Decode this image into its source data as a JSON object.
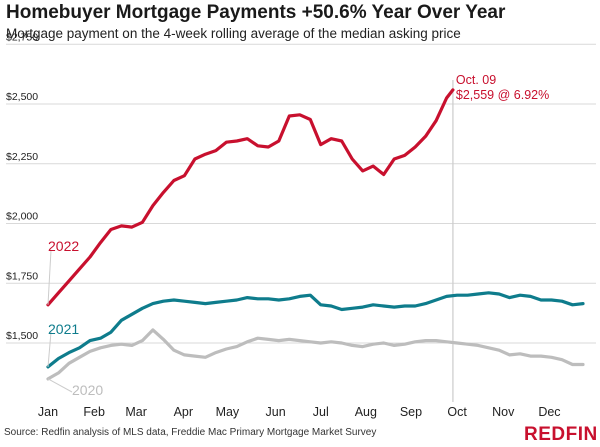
{
  "title": "Homebuyer Mortgage Payments +50.6% Year Over Year",
  "subtitle": "Mortgage payment on the 4-week rolling average of the median asking price",
  "source": "Source: Redfin analysis of MLS data, Freddie Mac Primary Mortgage Market Survey",
  "logo_text": "REDFIN",
  "colors": {
    "2022": "#c8102e",
    "2021": "#0e7c8c",
    "2020": "#bdbdbd",
    "grid": "#d9d9d9",
    "marker": "#cccccc"
  },
  "chart_data": {
    "type": "line",
    "title": "Homebuyer Mortgage Payments +50.6% Year Over Year",
    "subtitle": "Mortgage payment on the 4-week rolling average of the median asking price",
    "xlabel": "",
    "ylabel": "",
    "ylim": [
      1350,
      2750
    ],
    "xlim": [
      0,
      51
    ],
    "y_ticks": [
      {
        "value": 1500,
        "label": "$1,500"
      },
      {
        "value": 1750,
        "label": "$1,750"
      },
      {
        "value": 2000,
        "label": "$2,000"
      },
      {
        "value": 2250,
        "label": "$2,250"
      },
      {
        "value": 2500,
        "label": "$2,500"
      },
      {
        "value": 2750,
        "label": "$2,750"
      }
    ],
    "x_ticks": [
      {
        "week": 0,
        "label": "Jan"
      },
      {
        "week": 4.4,
        "label": "Feb"
      },
      {
        "week": 8.4,
        "label": "Mar"
      },
      {
        "week": 12.9,
        "label": "Apr"
      },
      {
        "week": 17.1,
        "label": "May"
      },
      {
        "week": 21.7,
        "label": "Jun"
      },
      {
        "week": 26.0,
        "label": "Jul"
      },
      {
        "week": 30.3,
        "label": "Aug"
      },
      {
        "week": 34.6,
        "label": "Sep"
      },
      {
        "week": 39.0,
        "label": "Oct"
      },
      {
        "week": 43.4,
        "label": "Nov"
      },
      {
        "week": 47.8,
        "label": "Dec"
      }
    ],
    "grid": true,
    "marker_week": 38.6,
    "annotation": {
      "line1": "Oct. 09",
      "line2": "$2,559 @ 6.92%"
    },
    "series": [
      {
        "name": "2022",
        "x": [
          0,
          1,
          2,
          3,
          4,
          5,
          6,
          7,
          8,
          9,
          10,
          11,
          12,
          13,
          14,
          15,
          16,
          17,
          18,
          19,
          20,
          21,
          22,
          23,
          24,
          25,
          26,
          27,
          28,
          29,
          30,
          31,
          32,
          33,
          34,
          35,
          36,
          37,
          38,
          38.6
        ],
        "values": [
          1660,
          1710,
          1760,
          1810,
          1860,
          1920,
          1975,
          1990,
          1985,
          2005,
          2075,
          2130,
          2180,
          2200,
          2270,
          2290,
          2305,
          2340,
          2345,
          2355,
          2325,
          2320,
          2345,
          2450,
          2455,
          2435,
          2330,
          2355,
          2345,
          2270,
          2220,
          2240,
          2205,
          2270,
          2285,
          2320,
          2365,
          2430,
          2525,
          2559
        ]
      },
      {
        "name": "2021",
        "x": [
          0,
          1,
          2,
          3,
          4,
          5,
          6,
          7,
          8,
          9,
          10,
          11,
          12,
          13,
          14,
          15,
          16,
          17,
          18,
          19,
          20,
          21,
          22,
          23,
          24,
          25,
          26,
          27,
          28,
          29,
          30,
          31,
          32,
          33,
          34,
          35,
          36,
          37,
          38,
          39,
          40,
          41,
          42,
          43,
          44,
          45,
          46,
          47,
          48,
          49,
          50,
          51
        ],
        "values": [
          1400,
          1435,
          1460,
          1480,
          1510,
          1520,
          1545,
          1595,
          1620,
          1645,
          1665,
          1675,
          1680,
          1675,
          1670,
          1665,
          1670,
          1675,
          1680,
          1690,
          1685,
          1685,
          1680,
          1685,
          1695,
          1700,
          1660,
          1655,
          1640,
          1645,
          1650,
          1660,
          1655,
          1650,
          1655,
          1655,
          1665,
          1680,
          1695,
          1700,
          1700,
          1705,
          1710,
          1705,
          1690,
          1700,
          1695,
          1680,
          1680,
          1675,
          1660,
          1665
        ]
      },
      {
        "name": "2020",
        "x": [
          0,
          1,
          2,
          3,
          4,
          5,
          6,
          7,
          8,
          9,
          10,
          11,
          12,
          13,
          14,
          15,
          16,
          17,
          18,
          19,
          20,
          21,
          22,
          23,
          24,
          25,
          26,
          27,
          28,
          29,
          30,
          31,
          32,
          33,
          34,
          35,
          36,
          37,
          38,
          39,
          40,
          41,
          42,
          43,
          44,
          45,
          46,
          47,
          48,
          49,
          50,
          51
        ],
        "values": [
          1350,
          1375,
          1415,
          1440,
          1465,
          1480,
          1490,
          1495,
          1490,
          1510,
          1555,
          1515,
          1470,
          1450,
          1445,
          1440,
          1460,
          1475,
          1485,
          1505,
          1520,
          1515,
          1510,
          1515,
          1510,
          1505,
          1500,
          1505,
          1500,
          1490,
          1485,
          1495,
          1500,
          1490,
          1495,
          1505,
          1510,
          1510,
          1505,
          1500,
          1495,
          1490,
          1480,
          1470,
          1450,
          1455,
          1445,
          1445,
          1440,
          1430,
          1410,
          1410
        ]
      }
    ]
  }
}
